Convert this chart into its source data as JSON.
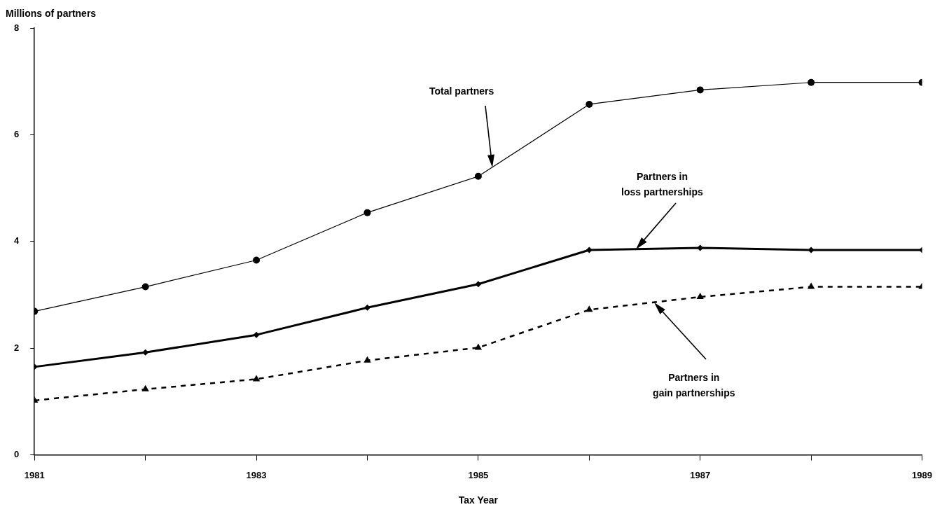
{
  "chart_data": {
    "type": "line",
    "xlabel": "Tax Year",
    "ylabel": "Millions of partners",
    "x": [
      1981,
      1982,
      1983,
      1984,
      1985,
      1986,
      1987,
      1988,
      1989
    ],
    "xlim": [
      1981,
      1989
    ],
    "xticks": [
      1981,
      {
        "value": 1982,
        "label": null
      },
      1983,
      {
        "value": 1984,
        "label": null
      },
      1985,
      {
        "value": 1986,
        "label": null
      },
      1987,
      {
        "value": 1988,
        "label": null
      },
      1989
    ],
    "ylim": [
      0,
      8
    ],
    "yticks": [
      0,
      2,
      4,
      6,
      8
    ],
    "grid": false,
    "legend": false,
    "series": [
      {
        "color": "#000000",
        "marker": "circle",
        "line_style": "solid",
        "values": [
          2.69,
          3.15,
          3.65,
          4.54,
          5.22,
          6.57,
          6.84,
          6.98,
          6.98
        ]
      },
      {
        "color": "#000000",
        "marker": "diamond",
        "line_style": "solid",
        "values": [
          1.65,
          1.92,
          2.25,
          2.76,
          3.2,
          3.84,
          3.88,
          3.84,
          3.84
        ]
      },
      {
        "color": "#000000",
        "marker": "triangle",
        "line_style": "dashed",
        "values": [
          1.02,
          1.23,
          1.42,
          1.77,
          2.01,
          2.72,
          2.96,
          3.15,
          3.15
        ]
      }
    ],
    "annotations": [
      "Total partners",
      "Partners in\nloss partnerships",
      "Partners in\ngain partnerships"
    ]
  }
}
